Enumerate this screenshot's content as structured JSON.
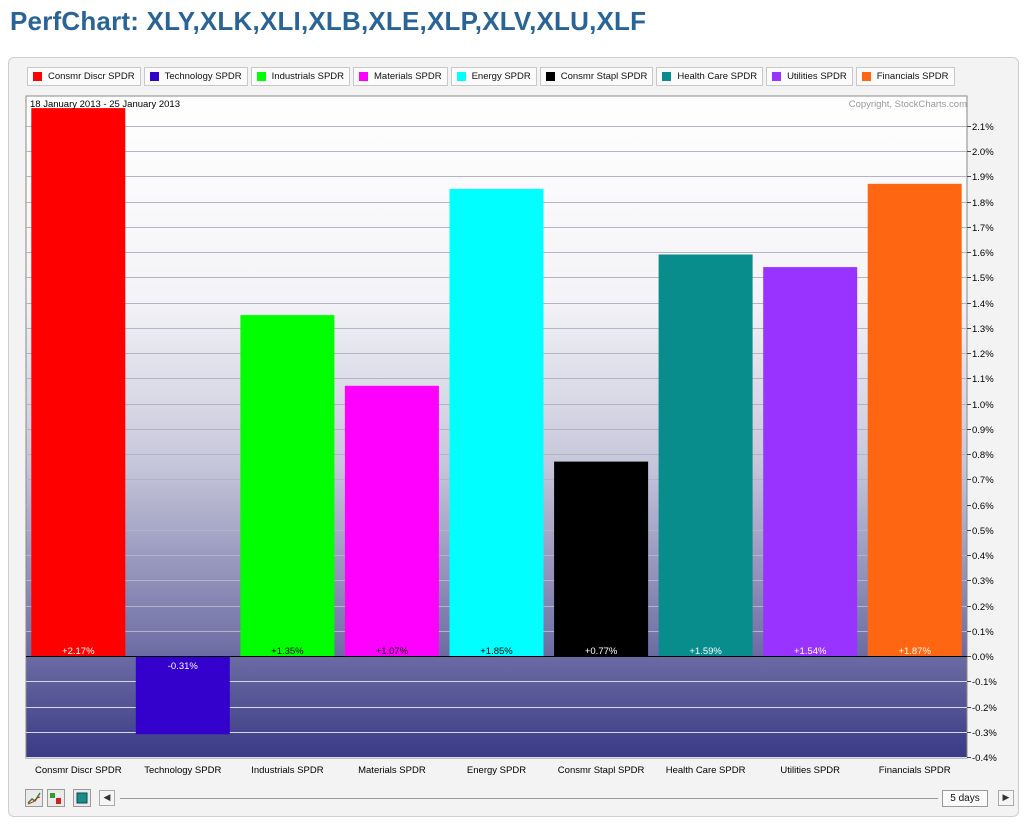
{
  "page_title": "PerfChart: XLY,XLK,XLI,XLB,XLE,XLP,XLV,XLU,XLF",
  "date_range": "18 January 2013 - 25 January 2013",
  "copyright": "Copyright, StockCharts.com",
  "period_label": "5 days",
  "toolbar_icons": [
    "line-chart-icon",
    "bar-chart-icon",
    "histogram-icon"
  ],
  "chart_data": {
    "type": "bar",
    "categories": [
      "Consmr Discr SPDR",
      "Technology SPDR",
      "Industrials SPDR",
      "Materials SPDR",
      "Energy SPDR",
      "Consmr Stapl SPDR",
      "Health Care SPDR",
      "Utilities SPDR",
      "Financials SPDR"
    ],
    "values": [
      2.17,
      -0.31,
      1.35,
      1.07,
      1.85,
      0.77,
      1.59,
      1.54,
      1.87
    ],
    "value_labels": [
      "+2.17%",
      "-0.31%",
      "+1.35%",
      "+1.07%",
      "+1.85%",
      "+0.77%",
      "+1.59%",
      "+1.54%",
      "+1.87%"
    ],
    "colors": [
      "#ff0000",
      "#3300cc",
      "#00ff00",
      "#ff00ff",
      "#00ffff",
      "#000000",
      "#088c8c",
      "#9933ff",
      "#ff6611"
    ],
    "label_colors": [
      "#ffffff",
      "#ffffff",
      "#000000",
      "#000000",
      "#000000",
      "#ffffff",
      "#ffffff",
      "#ffffff",
      "#ffffff"
    ],
    "yticks": [
      2.1,
      2.0,
      1.9,
      1.8,
      1.7,
      1.6,
      1.5,
      1.4,
      1.3,
      1.2,
      1.1,
      1.0,
      0.9,
      0.8,
      0.7,
      0.6,
      0.5,
      0.4,
      0.3,
      0.2,
      0.1,
      0.0,
      -0.1,
      -0.2,
      -0.3,
      -0.4
    ],
    "ytick_labels": [
      "2.1%",
      "2.0%",
      "1.9%",
      "1.8%",
      "1.7%",
      "1.6%",
      "1.5%",
      "1.4%",
      "1.3%",
      "1.2%",
      "1.1%",
      "1.0%",
      "0.9%",
      "0.8%",
      "0.7%",
      "0.6%",
      "0.5%",
      "0.4%",
      "0.3%",
      "0.2%",
      "0.1%",
      "0.0%",
      "-0.1%",
      "-0.2%",
      "-0.3%",
      "-0.4%"
    ],
    "ylim": [
      -0.41,
      2.17
    ],
    "grid": true,
    "legend_position": "top"
  }
}
